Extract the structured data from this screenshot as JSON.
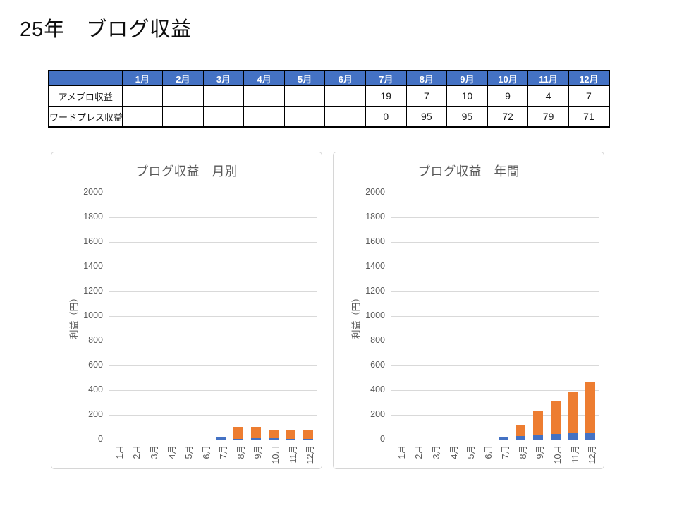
{
  "page": {
    "title": "25年　ブログ収益"
  },
  "colors": {
    "header_bg": "#4472C4",
    "header_text": "#FFFFFF",
    "series_blue": "#4472C4",
    "series_orange": "#ED7D31",
    "chart_text": "#595959",
    "gridline": "#D9D9D9"
  },
  "table": {
    "corner_label": "",
    "months": [
      "1月",
      "2月",
      "3月",
      "4月",
      "5月",
      "6月",
      "7月",
      "8月",
      "9月",
      "10月",
      "11月",
      "12月"
    ],
    "rows": [
      {
        "label": "アメブロ収益",
        "values": [
          "",
          "",
          "",
          "",
          "",
          "",
          "19",
          "7",
          "10",
          "9",
          "4",
          "7"
        ]
      },
      {
        "label": "ワードプレス収益",
        "values": [
          "",
          "",
          "",
          "",
          "",
          "",
          "0",
          "95",
          "95",
          "72",
          "79",
          "71"
        ]
      }
    ]
  },
  "chart_data": [
    {
      "type": "bar",
      "stacked": true,
      "title": "ブログ収益　月別",
      "xlabel": "",
      "ylabel": "利益（円）",
      "categories": [
        "1月",
        "2月",
        "3月",
        "4月",
        "5月",
        "6月",
        "7月",
        "8月",
        "9月",
        "10月",
        "11月",
        "12月"
      ],
      "series": [
        {
          "name": "アメブロ収益",
          "color": "#4472C4",
          "values": [
            0,
            0,
            0,
            0,
            0,
            0,
            19,
            7,
            10,
            9,
            4,
            7
          ]
        },
        {
          "name": "ワードプレス収益",
          "color": "#ED7D31",
          "values": [
            0,
            0,
            0,
            0,
            0,
            0,
            0,
            95,
            95,
            72,
            79,
            71
          ]
        }
      ],
      "ylim": [
        0,
        2000
      ],
      "ytick_step": 200,
      "grid": true,
      "legend_position": "none"
    },
    {
      "type": "bar",
      "stacked": true,
      "title": "ブログ収益　年間",
      "xlabel": "",
      "ylabel": "利益（円）",
      "categories": [
        "1月",
        "2月",
        "3月",
        "4月",
        "5月",
        "6月",
        "7月",
        "8月",
        "9月",
        "10月",
        "11月",
        "12月"
      ],
      "series": [
        {
          "name": "アメブロ収益",
          "color": "#4472C4",
          "values": [
            0,
            0,
            0,
            0,
            0,
            0,
            19,
            26,
            36,
            45,
            49,
            56
          ]
        },
        {
          "name": "ワードプレス収益",
          "color": "#ED7D31",
          "values": [
            0,
            0,
            0,
            0,
            0,
            0,
            0,
            95,
            190,
            262,
            341,
            412
          ]
        }
      ],
      "ylim": [
        0,
        2000
      ],
      "ytick_step": 200,
      "grid": true,
      "legend_position": "none"
    }
  ]
}
